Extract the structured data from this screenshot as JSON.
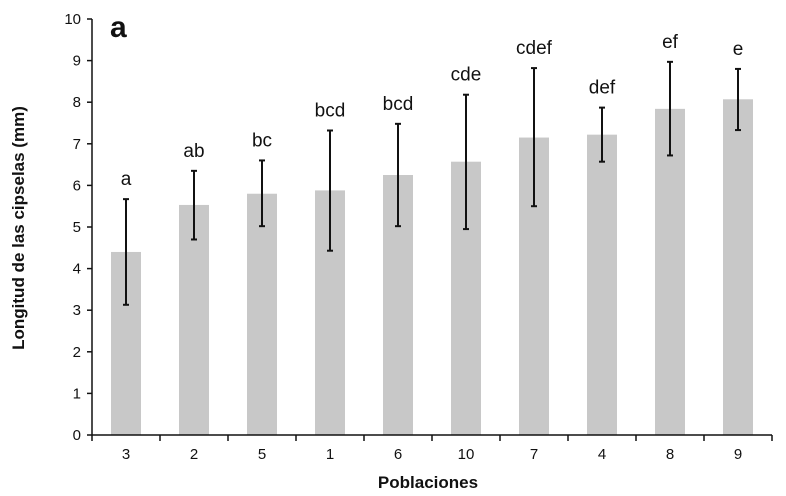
{
  "chart_data": {
    "type": "bar",
    "panel_label": "a",
    "title": "",
    "xlabel": "Poblaciones",
    "ylabel": "Longitud de las cipselas (mm)",
    "ylim": [
      0,
      10
    ],
    "yticks": [
      0,
      1,
      2,
      3,
      4,
      5,
      6,
      7,
      8,
      9,
      10
    ],
    "grid": false,
    "legend": "none",
    "bar_color": "#c8c8c8",
    "error_color": "#111111",
    "categories": [
      "3",
      "2",
      "5",
      "1",
      "6",
      "10",
      "7",
      "4",
      "8",
      "9"
    ],
    "values": [
      4.4,
      5.53,
      5.8,
      5.88,
      6.25,
      6.57,
      7.15,
      7.22,
      7.84,
      8.07
    ],
    "error_low": [
      3.13,
      4.7,
      5.02,
      4.43,
      5.02,
      4.95,
      5.5,
      6.57,
      6.72,
      7.33
    ],
    "error_high": [
      5.67,
      6.35,
      6.6,
      7.32,
      7.48,
      8.18,
      8.82,
      7.87,
      8.97,
      8.8
    ],
    "group_labels": [
      "a",
      "ab",
      "bc",
      "bcd",
      "bcd",
      "cde",
      "cdef",
      "def",
      "ef",
      "e"
    ]
  }
}
